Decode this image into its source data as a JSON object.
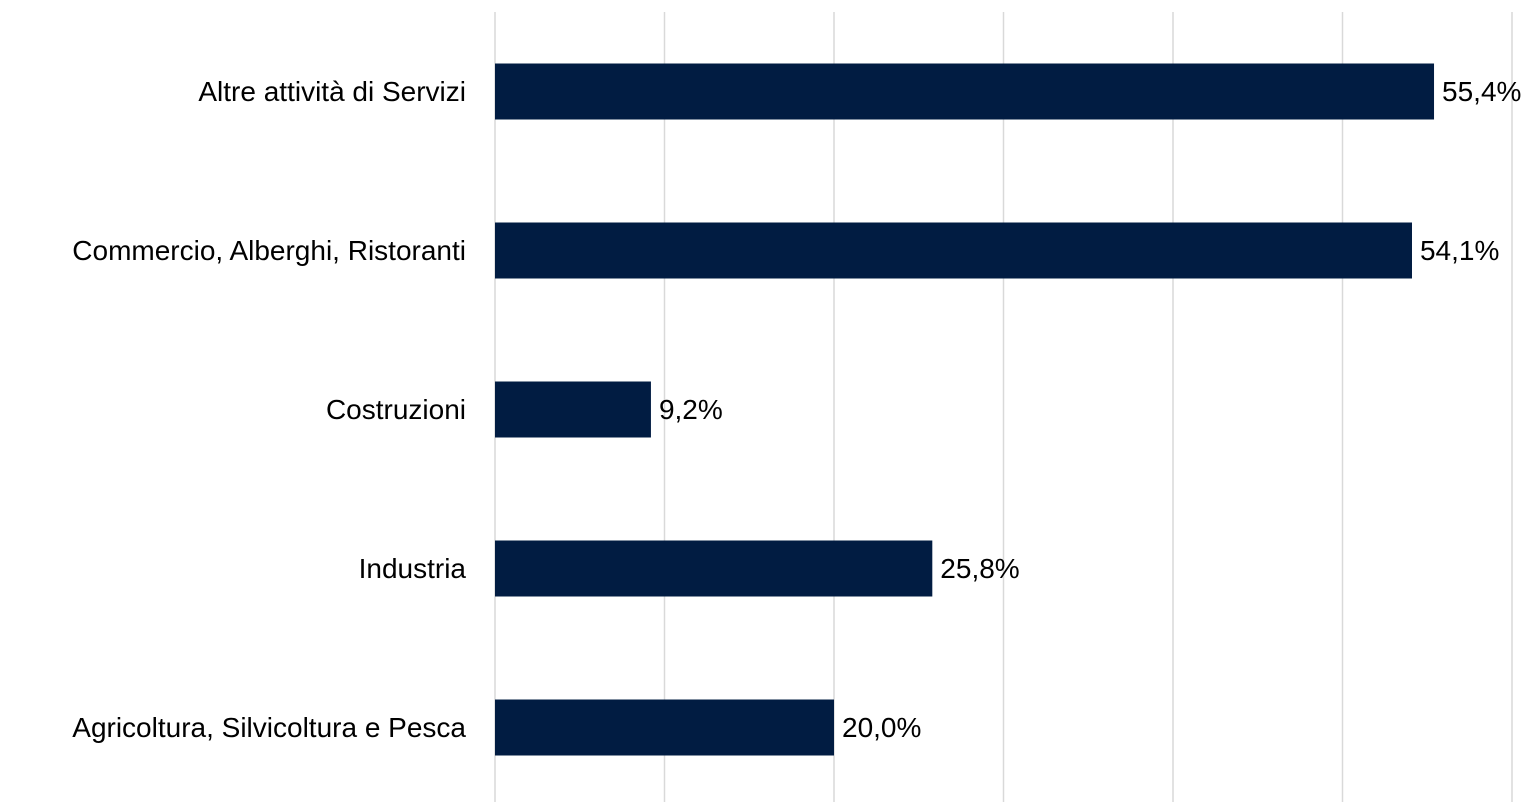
{
  "chart_data": {
    "type": "barh",
    "categories": [
      "Altre attività di Servizi",
      "Commercio, Alberghi, Ristoranti",
      "Costruzioni",
      "Industria",
      "Agricoltura, Silvicoltura e Pesca"
    ],
    "values": [
      55.4,
      54.1,
      9.2,
      25.8,
      20.0
    ],
    "value_labels": [
      "55,4%",
      "54,1%",
      "9,2%",
      "25,8%",
      "20,0%"
    ],
    "color": "#011c42",
    "xlim": [
      0,
      60
    ],
    "xticks": [
      0,
      10,
      20,
      30,
      40,
      50,
      60
    ],
    "grid": true
  }
}
